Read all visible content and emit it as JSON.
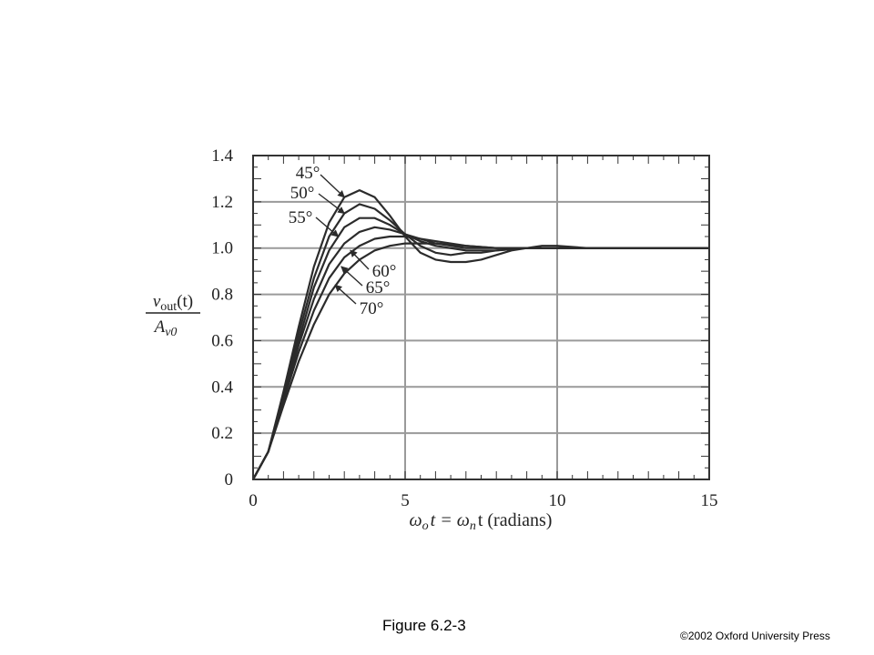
{
  "caption": "Figure 6.2-3",
  "copyright": "©2002 Oxford University Press",
  "chart_data": {
    "type": "line",
    "xlabel": "ω_o t = ω_n t (radians)",
    "xlabel_parts": {
      "a": "ω",
      "a_sub": "o",
      "b": "t = ω",
      "b_sub": "n",
      "c": "t (radians)"
    },
    "ylabel_num": "v_out(t)",
    "ylabel_num_parts": {
      "v": "v",
      "sub": "out",
      "rest": "(t)"
    },
    "ylabel_den": "A_v0",
    "ylabel_den_parts": {
      "a": "A",
      "sub": "v0"
    },
    "xlim": [
      0,
      15
    ],
    "ylim": [
      0,
      1.4
    ],
    "x_ticks": [
      "0",
      "5",
      "10",
      "15"
    ],
    "y_ticks": [
      "0",
      "0.2",
      "0.4",
      "0.6",
      "0.8",
      "1.0",
      "1.2",
      "1.4"
    ],
    "grid": true,
    "colors": {
      "line": "#2b2b2b",
      "grid": "#9a9a9a",
      "frame": "#333333"
    },
    "series": [
      {
        "name": "45°",
        "x": [
          0,
          0.5,
          1,
          1.5,
          2,
          2.5,
          3,
          3.5,
          4,
          4.5,
          5,
          5.5,
          6,
          6.5,
          7,
          7.5,
          8,
          8.5,
          9,
          9.5,
          10,
          11,
          12,
          13,
          15
        ],
        "y": [
          0,
          0.12,
          0.38,
          0.66,
          0.92,
          1.11,
          1.22,
          1.25,
          1.22,
          1.14,
          1.05,
          0.98,
          0.95,
          0.94,
          0.94,
          0.95,
          0.97,
          0.99,
          1.0,
          1.01,
          1.01,
          1.0,
          1.0,
          1.0,
          1.0
        ]
      },
      {
        "name": "50°",
        "x": [
          0,
          0.5,
          1,
          1.5,
          2,
          2.5,
          3,
          3.5,
          4,
          4.5,
          5,
          5.5,
          6,
          6.5,
          7,
          7.5,
          8,
          9,
          10,
          12,
          15
        ],
        "y": [
          0,
          0.12,
          0.37,
          0.63,
          0.87,
          1.05,
          1.15,
          1.19,
          1.17,
          1.12,
          1.06,
          1.01,
          0.98,
          0.97,
          0.98,
          0.98,
          0.99,
          1.0,
          1.0,
          1.0,
          1.0
        ]
      },
      {
        "name": "55°",
        "x": [
          0,
          0.5,
          1,
          1.5,
          2,
          2.5,
          3,
          3.5,
          4,
          4.5,
          5,
          5.5,
          6,
          7,
          8,
          9,
          10,
          15
        ],
        "y": [
          0,
          0.12,
          0.36,
          0.6,
          0.83,
          0.99,
          1.09,
          1.13,
          1.13,
          1.1,
          1.06,
          1.03,
          1.01,
          0.99,
          0.99,
          1.0,
          1.0,
          1.0
        ]
      },
      {
        "name": "60°",
        "x": [
          0,
          0.5,
          1,
          1.5,
          2,
          2.5,
          3,
          3.5,
          4,
          4.5,
          5,
          5.5,
          6,
          7,
          8,
          10,
          15
        ],
        "y": [
          0,
          0.12,
          0.35,
          0.58,
          0.78,
          0.93,
          1.02,
          1.07,
          1.09,
          1.08,
          1.06,
          1.04,
          1.02,
          1.0,
          1.0,
          1.0,
          1.0
        ]
      },
      {
        "name": "65°",
        "x": [
          0,
          0.5,
          1,
          1.5,
          2,
          2.5,
          3,
          3.5,
          4,
          4.5,
          5,
          5.5,
          6,
          7,
          8,
          10,
          15
        ],
        "y": [
          0,
          0.12,
          0.34,
          0.55,
          0.73,
          0.87,
          0.96,
          1.01,
          1.04,
          1.05,
          1.05,
          1.04,
          1.03,
          1.01,
          1.0,
          1.0,
          1.0
        ]
      },
      {
        "name": "70°",
        "x": [
          0,
          0.5,
          1,
          1.5,
          2,
          2.5,
          3,
          3.5,
          4,
          4.5,
          5,
          5.5,
          6,
          7,
          8,
          10,
          15
        ],
        "y": [
          0,
          0.12,
          0.32,
          0.51,
          0.67,
          0.8,
          0.89,
          0.95,
          0.99,
          1.01,
          1.02,
          1.02,
          1.02,
          1.01,
          1.0,
          1.0,
          1.0
        ]
      }
    ],
    "annotations": [
      {
        "label": "45°",
        "target_x": 3.0,
        "target_y": 1.22
      },
      {
        "label": "50°",
        "target_x": 3.0,
        "target_y": 1.15
      },
      {
        "label": "55°",
        "target_x": 2.8,
        "target_y": 1.05
      },
      {
        "label": "60°",
        "target_x": 3.2,
        "target_y": 0.99
      },
      {
        "label": "65°",
        "target_x": 2.9,
        "target_y": 0.92
      },
      {
        "label": "70°",
        "target_x": 2.7,
        "target_y": 0.84
      }
    ]
  }
}
